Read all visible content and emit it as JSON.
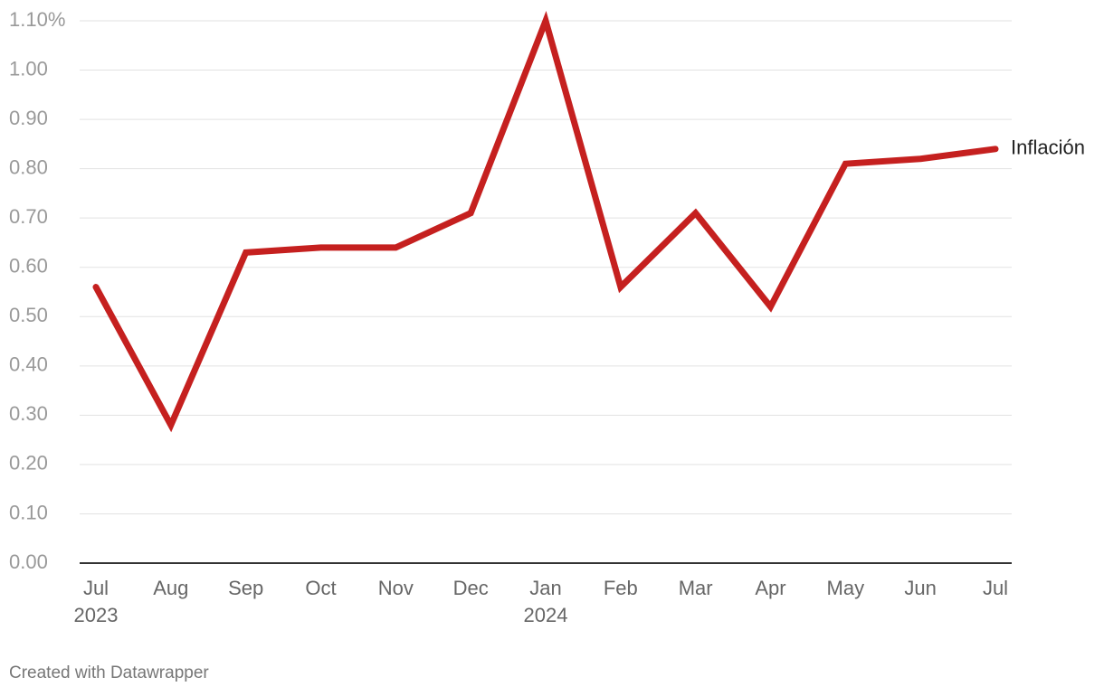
{
  "chart_data": {
    "type": "line",
    "categories": [
      "Jul\n2023",
      "Aug",
      "Sep",
      "Oct",
      "Nov",
      "Dec",
      "Jan\n2024",
      "Feb",
      "Mar",
      "Apr",
      "May",
      "Jun",
      "Jul"
    ],
    "series": [
      {
        "name": "Inflación",
        "color": "#c5201f",
        "values": [
          0.56,
          0.28,
          0.63,
          0.64,
          0.64,
          0.71,
          1.1,
          0.56,
          0.71,
          0.52,
          0.81,
          0.82,
          0.84
        ]
      }
    ],
    "ylim": [
      0,
      1.1
    ],
    "yticks": [
      {
        "value": 0,
        "label": "0.00"
      },
      {
        "value": 0.1,
        "label": "0.10"
      },
      {
        "value": 0.2,
        "label": "0.20"
      },
      {
        "value": 0.3,
        "label": "0.30"
      },
      {
        "value": 0.4,
        "label": "0.40"
      },
      {
        "value": 0.5,
        "label": "0.50"
      },
      {
        "value": 0.6,
        "label": "0.60"
      },
      {
        "value": 0.7,
        "label": "0.70"
      },
      {
        "value": 0.8,
        "label": "0.80"
      },
      {
        "value": 0.9,
        "label": "0.90"
      },
      {
        "value": 1.0,
        "label": "1.00"
      },
      {
        "value": 1.1,
        "label": "1.10%"
      }
    ],
    "grid": true,
    "source": "Created with Datawrapper"
  }
}
